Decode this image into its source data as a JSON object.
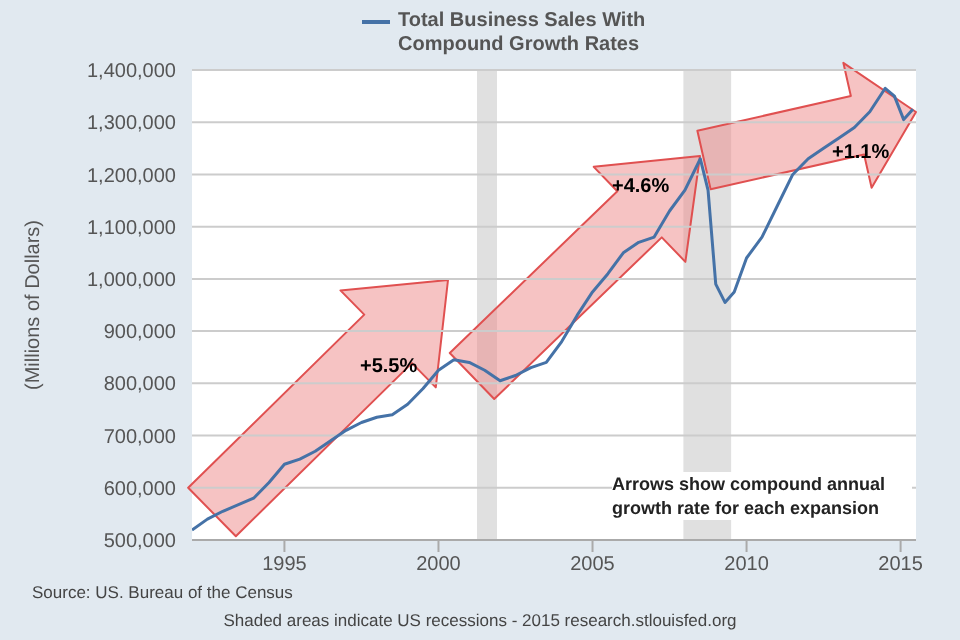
{
  "chart_data": {
    "type": "line",
    "ylabel": "(Millions of Dollars)",
    "x": [
      1992,
      1992.5,
      1993,
      1994,
      1994.5,
      1995,
      1995.5,
      1996,
      1996.5,
      1997,
      1997.5,
      1998,
      1998.5,
      1999,
      1999.5,
      2000,
      2000.5,
      2001,
      2001.5,
      2002,
      2002.5,
      2003,
      2003.5,
      2004,
      2004.5,
      2005,
      2005.5,
      2006,
      2006.5,
      2007,
      2007.5,
      2008,
      2008.5,
      2008.75,
      2009,
      2009.3,
      2009.6,
      2010,
      2010.5,
      2011,
      2011.5,
      2012,
      2012.5,
      2013,
      2013.5,
      2014,
      2014.5,
      2014.8,
      2015.1,
      2015.4
    ],
    "series": [
      {
        "name": "Total Business Sales With Compound Growth Rates",
        "color": "#4572a7",
        "values": [
          519000,
          540000,
          555000,
          580000,
          610000,
          645000,
          655000,
          670000,
          690000,
          710000,
          725000,
          735000,
          740000,
          760000,
          790000,
          825000,
          845000,
          840000,
          825000,
          805000,
          815000,
          830000,
          840000,
          880000,
          930000,
          975000,
          1010000,
          1050000,
          1070000,
          1080000,
          1130000,
          1170000,
          1230000,
          1170000,
          990000,
          955000,
          975000,
          1040000,
          1080000,
          1140000,
          1200000,
          1230000,
          1250000,
          1270000,
          1290000,
          1320000,
          1365000,
          1350000,
          1305000,
          1325000
        ]
      }
    ],
    "xlim": [
      1992,
      2015.5
    ],
    "xticks": [
      1995,
      2000,
      2005,
      2010,
      2015
    ],
    "ylim": [
      500000,
      1400000
    ],
    "yticks": [
      {
        "value": 500000,
        "label": "500,000"
      },
      {
        "value": 600000,
        "label": "600,000"
      },
      {
        "value": 700000,
        "label": "700,000"
      },
      {
        "value": 800000,
        "label": "800,000"
      },
      {
        "value": 900000,
        "label": "900,000"
      },
      {
        "value": 1000000,
        "label": "1,000,000"
      },
      {
        "value": 1100000,
        "label": "1,100,000"
      },
      {
        "value": 1200000,
        "label": "1,200,000"
      },
      {
        "value": 1300000,
        "label": "1,300,000"
      },
      {
        "value": 1400000,
        "label": "1,400,000"
      }
    ],
    "bands": [
      {
        "axis": "x",
        "from": 2001.25,
        "to": 2001.9,
        "color": "#e0e0e0"
      },
      {
        "axis": "x",
        "from": 2007.95,
        "to": 2009.5,
        "color": "#e0e0e0"
      }
    ],
    "annotations": [
      "+5.5%",
      "+4.6%",
      "+1.1%",
      "Arrows show compound annual growth rate for each expansion",
      "Source: US. Bureau of the Census",
      "Shaded areas indicate US recessions - 2015 research.stlouisfed.org"
    ],
    "grid": "y",
    "legend": "top",
    "marker": "none",
    "line_style": "solid"
  }
}
